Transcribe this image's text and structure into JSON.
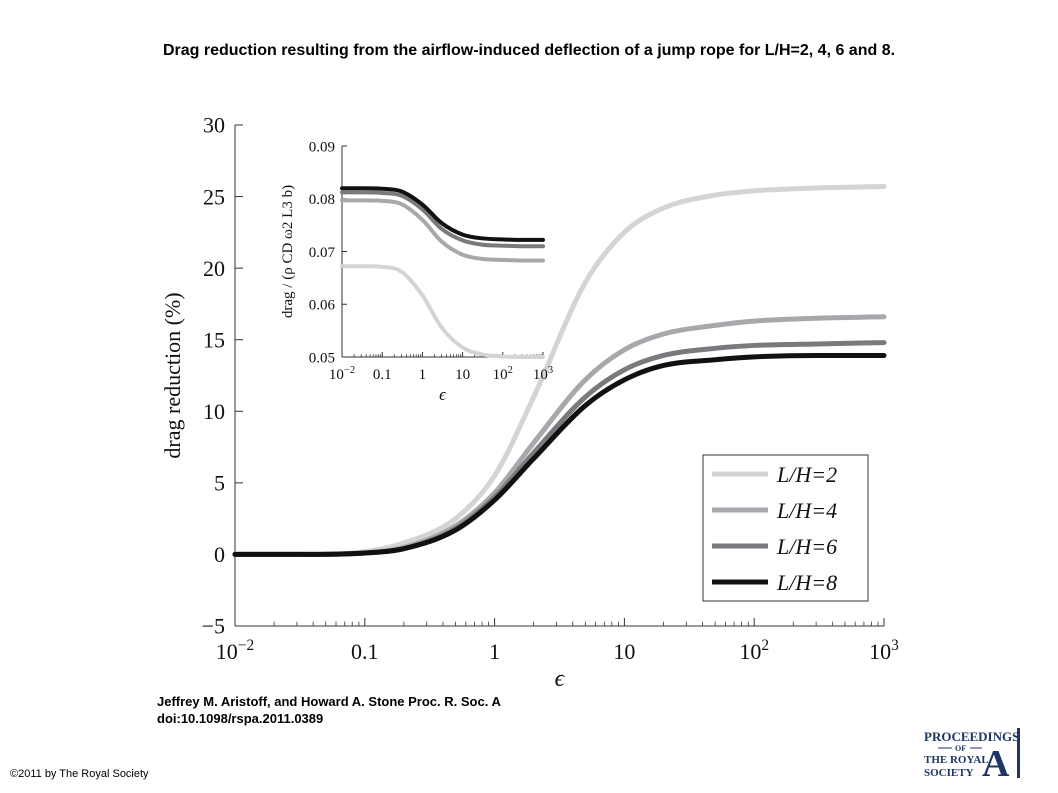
{
  "title": "Drag reduction resulting from the airflow-induced deflection of a jump rope for L/H=2, 4, 6 and 8.",
  "citation": {
    "line1": "Jeffrey M. Aristoff, and Howard A. Stone Proc. R. Soc. A",
    "line2": "doi:10.1098/rspa.2011.0389"
  },
  "copyright": "©2011 by The Royal Society",
  "logo": {
    "line1": "PROCEEDINGS",
    "line2": "OF",
    "line3": "THE ROYAL",
    "line4": "SOCIETY",
    "letter": "A"
  },
  "colors": {
    "L/H=2": "#d4d4d4",
    "L/H=4": "#a8a8ac",
    "L/H=6": "#7a7a7e",
    "L/H=8": "#111111",
    "logo": "#1f3564"
  },
  "chart_data": [
    {
      "type": "line",
      "xscale": "log",
      "xlabel": "ϵ",
      "ylabel": "drag reduction (%)",
      "xlim": [
        0.01,
        1000
      ],
      "ylim": [
        -5,
        30
      ],
      "xticks": [
        "10−2",
        "0.1",
        "1",
        "10",
        "102",
        "103"
      ],
      "yticks": [
        "−5",
        "0",
        "5",
        "10",
        "15",
        "20",
        "25",
        "30"
      ],
      "legend_position": "bottom-right",
      "x": [
        0.01,
        0.03,
        0.1,
        0.2,
        0.5,
        1,
        2,
        5,
        10,
        20,
        50,
        100,
        300,
        1000
      ],
      "series": [
        {
          "name": "L/H=2",
          "values": [
            0,
            0,
            0.2,
            0.8,
            2.5,
            5.5,
            11,
            19,
            22.5,
            24.2,
            25.1,
            25.4,
            25.6,
            25.7
          ]
        },
        {
          "name": "L/H=4",
          "values": [
            0,
            0,
            0.1,
            0.5,
            2.0,
            4.3,
            7.8,
            12.2,
            14.3,
            15.4,
            16.0,
            16.3,
            16.5,
            16.6
          ]
        },
        {
          "name": "L/H=6",
          "values": [
            0,
            0,
            0.1,
            0.4,
            1.8,
            4.0,
            7.1,
            11.0,
            12.9,
            13.9,
            14.4,
            14.6,
            14.7,
            14.8
          ]
        },
        {
          "name": "L/H=8",
          "values": [
            0,
            0,
            0.1,
            0.4,
            1.7,
            3.8,
            6.7,
            10.4,
            12.2,
            13.2,
            13.6,
            13.8,
            13.9,
            13.9
          ]
        }
      ]
    },
    {
      "type": "line",
      "xscale": "log",
      "xlabel": "ϵ",
      "ylabel": "drag / (ρ CD ω2 L3 b)",
      "xlim": [
        0.01,
        1000
      ],
      "ylim": [
        0.05,
        0.09
      ],
      "xticks": [
        "10−2",
        "0.1",
        "1",
        "10",
        "102",
        "103"
      ],
      "yticks": [
        "0.05",
        "0.06",
        "0.07",
        "0.08",
        "0.09"
      ],
      "x": [
        0.01,
        0.03,
        0.1,
        0.3,
        1,
        3,
        10,
        30,
        100,
        300,
        1000
      ],
      "series": [
        {
          "name": "L/H=2",
          "values": [
            0.0672,
            0.0672,
            0.0671,
            0.0662,
            0.0617,
            0.0556,
            0.0518,
            0.0505,
            0.0501,
            0.05,
            0.05
          ]
        },
        {
          "name": "L/H=4",
          "values": [
            0.0797,
            0.0797,
            0.0796,
            0.079,
            0.076,
            0.0719,
            0.0694,
            0.0686,
            0.0684,
            0.0683,
            0.0683
          ]
        },
        {
          "name": "L/H=6",
          "values": [
            0.0812,
            0.0812,
            0.0811,
            0.0806,
            0.078,
            0.0743,
            0.0721,
            0.0713,
            0.0711,
            0.071,
            0.071
          ]
        },
        {
          "name": "L/H=8",
          "values": [
            0.082,
            0.082,
            0.0819,
            0.0814,
            0.0789,
            0.0754,
            0.0732,
            0.0725,
            0.0723,
            0.0722,
            0.0722
          ]
        }
      ]
    }
  ]
}
